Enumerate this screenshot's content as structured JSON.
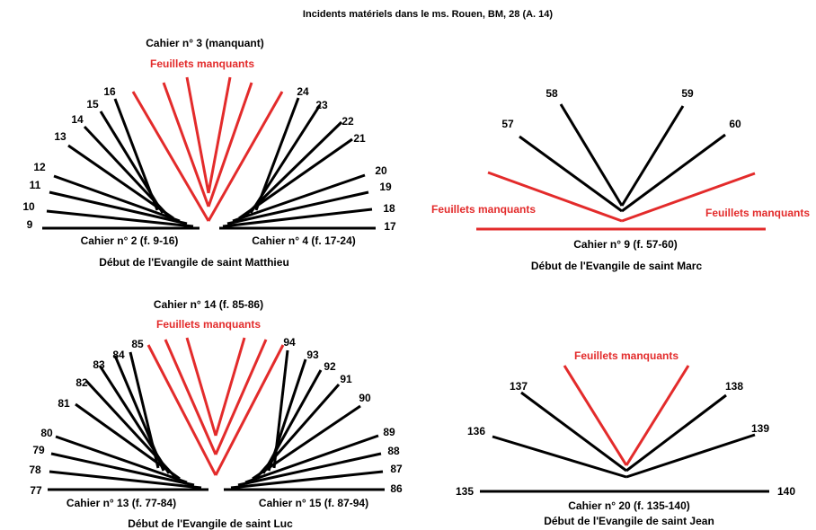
{
  "title": "Incidents matériels dans le ms. Rouen, BM, 28 (A. 14)",
  "colors": {
    "ink": "#000000",
    "missing": "#e32b2b"
  },
  "diagrams": [
    {
      "top_label": "Cahier n° 3 (manquant)",
      "missing_label": "Feuillets manquants",
      "left_label": "Cahier n° 2 (f. 9-16)",
      "right_label": "Cahier n° 4 (f. 17-24)",
      "bottom_label": "Début de l'Evangile de saint Matthieu",
      "left_leaves": [
        "9",
        "10",
        "11",
        "12",
        "13",
        "14",
        "15",
        "16"
      ],
      "right_leaves": [
        "17",
        "18",
        "19",
        "20",
        "21",
        "22",
        "23",
        "24"
      ]
    },
    {
      "top_label": "Cahier n° 9 (f. 57-60)",
      "missing_left": "Feuillets manquants",
      "missing_right": "Feuillets manquants",
      "bottom_label": "Début de l'Evangile de saint Marc",
      "left_leaves": [
        "57",
        "58"
      ],
      "right_leaves": [
        "59",
        "60"
      ]
    },
    {
      "top_label": "Cahier n° 14 (f. 85-86)",
      "missing_label": "Feuillets manquants",
      "left_label": "Cahier n° 13 (f. 77-84)",
      "right_label": "Cahier n° 15 (f. 87-94)",
      "bottom_label": "Début de l'Evangile de saint Luc",
      "left_leaves": [
        "77",
        "78",
        "79",
        "80",
        "81",
        "82",
        "83",
        "84",
        "85"
      ],
      "right_leaves": [
        "86",
        "87",
        "88",
        "89",
        "90",
        "91",
        "92",
        "93",
        "94"
      ]
    },
    {
      "missing_label": "Feuillets manquants",
      "top_label": "Cahier n° 20 (f. 135-140)",
      "bottom_label": "Début de l'Evangile de saint Jean",
      "left_leaves": [
        "135",
        "136",
        "137"
      ],
      "right_leaves": [
        "138",
        "139",
        "140"
      ]
    }
  ]
}
